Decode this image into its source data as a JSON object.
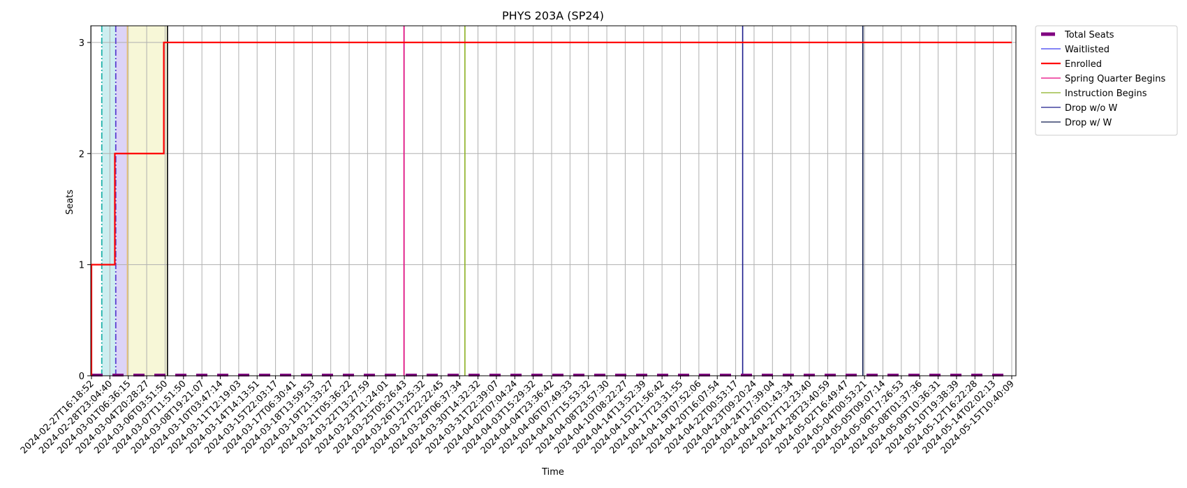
{
  "chart_data": {
    "type": "line",
    "title": "PHYS 203A (SP24)",
    "xlabel": "Time",
    "ylabel": "Seats",
    "ylim": [
      0,
      3.15
    ],
    "yticks": [
      0,
      1,
      2,
      3
    ],
    "grid": true,
    "legend_placement": "outside-top-right",
    "x": [
      "2024-02-27T16:18:52",
      "2024-02-28T23:04:40",
      "2024-03-01T06:36:15",
      "2024-03-04T20:28:27",
      "2024-03-06T03:51:50",
      "2024-03-07T11:51:50",
      "2024-03-08T19:21:07",
      "2024-03-10T03:47:14",
      "2024-03-11T12:19:03",
      "2024-03-14T14:13:51",
      "2024-03-15T22:03:17",
      "2024-03-17T06:30:41",
      "2024-03-18T13:59:53",
      "2024-03-19T21:33:27",
      "2024-03-21T05:36:22",
      "2024-03-22T13:27:59",
      "2024-03-23T21:24:01",
      "2024-03-25T05:26:43",
      "2024-03-26T13:25:32",
      "2024-03-27T22:22:45",
      "2024-03-29T06:37:34",
      "2024-03-30T14:32:32",
      "2024-03-31T22:39:07",
      "2024-04-02T07:04:24",
      "2024-04-03T15:29:32",
      "2024-04-04T23:36:42",
      "2024-04-06T07:49:33",
      "2024-04-07T15:53:32",
      "2024-04-08T23:57:30",
      "2024-04-10T08:22:27",
      "2024-04-14T13:52:39",
      "2024-04-15T21:56:42",
      "2024-04-17T23:31:55",
      "2024-04-19T07:52:06",
      "2024-04-20T16:07:54",
      "2024-04-22T00:53:17",
      "2024-04-23T09:20:24",
      "2024-04-24T17:39:04",
      "2024-04-26T01:43:34",
      "2024-04-27T12:23:40",
      "2024-04-28T23:40:59",
      "2024-05-02T16:49:47",
      "2024-05-04T00:53:21",
      "2024-05-05T09:07:14",
      "2024-05-06T17:26:53",
      "2024-05-08T01:37:36",
      "2024-05-09T10:36:31",
      "2024-05-10T19:38:39",
      "2024-05-12T16:22:28",
      "2024-05-14T02:02:13",
      "2024-05-15T10:40:09"
    ],
    "series": [
      {
        "name": "Total Seats",
        "color": "#800080",
        "style": "dashed-thick",
        "values": [
          0,
          0,
          0,
          0,
          0,
          0,
          0,
          0,
          0,
          0,
          0,
          0,
          0,
          0,
          0,
          0,
          0,
          0,
          0,
          0,
          0,
          0,
          0,
          0,
          0,
          0,
          0,
          0,
          0,
          0,
          0,
          0,
          0,
          0,
          0,
          0,
          0,
          0,
          0,
          0,
          0,
          0,
          0,
          0,
          0,
          0,
          0,
          0,
          0,
          0,
          0
        ]
      },
      {
        "name": "Waitlisted",
        "color": "#3b3bf0",
        "style": "solid-thin",
        "values": [
          0,
          0,
          0,
          0,
          0,
          0,
          0,
          0,
          0,
          0,
          0,
          0,
          0,
          0,
          0,
          0,
          0,
          0,
          0,
          0,
          0,
          0,
          0,
          0,
          0,
          0,
          0,
          0,
          0,
          0,
          0,
          0,
          0,
          0,
          0,
          0,
          0,
          0,
          0,
          0,
          0,
          0,
          0,
          0,
          0,
          0,
          0,
          0,
          0,
          0,
          0
        ]
      },
      {
        "name": "Enrolled",
        "color": "#ff0000",
        "style": "step",
        "values": [
          1,
          1,
          2,
          2,
          3,
          3,
          3,
          3,
          3,
          3,
          3,
          3,
          3,
          3,
          3,
          3,
          3,
          3,
          3,
          3,
          3,
          3,
          3,
          3,
          3,
          3,
          3,
          3,
          3,
          3,
          3,
          3,
          3,
          3,
          3,
          3,
          3,
          3,
          3,
          3,
          3,
          3,
          3,
          3,
          3,
          3,
          3,
          3,
          3,
          3,
          3
        ]
      }
    ],
    "regions": [
      {
        "from": 0.56,
        "to": 1.32,
        "color": "#cdeef0"
      },
      {
        "from": 1.32,
        "to": 1.95,
        "color": "#dcd3f7"
      },
      {
        "from": 1.95,
        "to": 4.13,
        "color": "#f7f7d7"
      }
    ],
    "enrolled_steps": [
      {
        "x": 0,
        "y": 1
      },
      {
        "x": 1.27,
        "y": 2
      },
      {
        "x": 3.93,
        "y": 3
      }
    ],
    "markers": [
      {
        "name": "Spring Quarter Begins",
        "x": 16.98,
        "color": "#e6007e",
        "in_legend": true
      },
      {
        "name": "Instruction Begins",
        "x": 20.29,
        "color": "#8ab020",
        "in_legend": true
      },
      {
        "name": "Drop w/o W",
        "x": 35.38,
        "color": "#1c1c8c",
        "in_legend": true
      },
      {
        "name": "Drop w/ W",
        "x": 41.91,
        "color": "#0d1a4d",
        "in_legend": true
      },
      {
        "name": "",
        "x": 0.56,
        "color": "#20b2aa",
        "style": "dashdot",
        "in_legend": false
      },
      {
        "name": "",
        "x": 1.32,
        "color": "#5a3fd0",
        "style": "dashdot",
        "in_legend": false
      },
      {
        "name": "",
        "x": 1.95,
        "color": "#e8c070",
        "style": "solid",
        "in_legend": false
      },
      {
        "name": "",
        "x": 4.13,
        "color": "#000000",
        "style": "solid",
        "in_legend": false
      }
    ]
  }
}
